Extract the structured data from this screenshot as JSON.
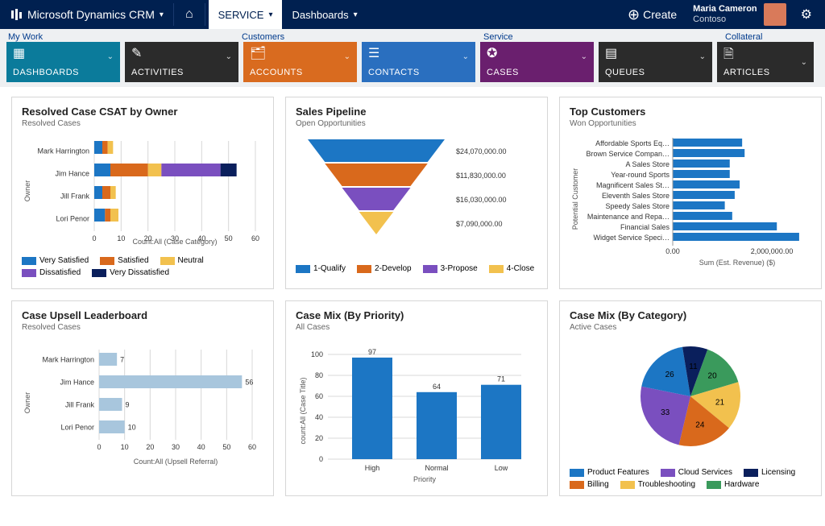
{
  "topbar": {
    "brand": "Microsoft Dynamics CRM",
    "nav": {
      "service": "SERVICE",
      "dashboards": "Dashboards"
    },
    "create": "Create",
    "user": {
      "name": "Maria Cameron",
      "org": "Contoso"
    }
  },
  "sections": {
    "mywork": "My Work",
    "customers": "Customers",
    "service": "Service",
    "collateral": "Collateral"
  },
  "tiles": {
    "dashboards": "DASHBOARDS",
    "activities": "ACTIVITIES",
    "accounts": "ACCOUNTS",
    "contacts": "CONTACTS",
    "cases": "CASES",
    "queues": "QUEUES",
    "articles": "ARTICLES"
  },
  "cards": {
    "csat": {
      "title": "Resolved Case CSAT by Owner",
      "subtitle": "Resolved Cases",
      "ylabel": "Owner",
      "xlabel": "Count:All (Case Category)",
      "xmax": 60,
      "xtick": 10,
      "owners": [
        "Mark Harrington",
        "Jim Hance",
        "Jill Frank",
        "Lori Penor"
      ],
      "series": [
        "Very Satisfied",
        "Satisfied",
        "Neutral",
        "Dissatisfied",
        "Very Dissatisfied"
      ],
      "colors": [
        "#1c76c4",
        "#d9691c",
        "#f2c14e",
        "#7a4fbf",
        "#0a1f5c"
      ],
      "stacks": [
        [
          3,
          2,
          2,
          0,
          0
        ],
        [
          6,
          14,
          5,
          22,
          6
        ],
        [
          3,
          3,
          2,
          0,
          0
        ],
        [
          4,
          2,
          3,
          0,
          0
        ]
      ]
    },
    "pipeline": {
      "title": "Sales Pipeline",
      "subtitle": "Open Opportunities",
      "stages": [
        {
          "label": "1-Qualify",
          "value": "$24,070,000.00",
          "color": "#1c76c4"
        },
        {
          "label": "2-Develop",
          "value": "$11,830,000.00",
          "color": "#d9691c"
        },
        {
          "label": "3-Propose",
          "value": "$16,030,000.00",
          "color": "#7a4fbf"
        },
        {
          "label": "4-Close",
          "value": "$7,090,000.00",
          "color": "#f2c14e"
        }
      ]
    },
    "topcust": {
      "title": "Top Customers",
      "subtitle": "Won Opportunities",
      "ylabel": "Potential Customer",
      "xlabel": "Sum (Est. Revenue) ($)",
      "xticks": [
        "0.00",
        "2,000,000.00"
      ],
      "xmax": 2600000,
      "bar_color": "#1c76c4",
      "rows": [
        {
          "label": "Affordable Sports Eq…",
          "value": 1400000
        },
        {
          "label": "Brown Service Compan…",
          "value": 1450000
        },
        {
          "label": "A Sales Store",
          "value": 1150000
        },
        {
          "label": "Year-round Sports",
          "value": 1150000
        },
        {
          "label": "Magnificent Sales St…",
          "value": 1350000
        },
        {
          "label": "Eleventh Sales Store",
          "value": 1250000
        },
        {
          "label": "Speedy Sales Store",
          "value": 1050000
        },
        {
          "label": "Maintenance and Repa…",
          "value": 1200000
        },
        {
          "label": "Financial Sales",
          "value": 2100000
        },
        {
          "label": "Widget Service Speci…",
          "value": 2550000
        }
      ]
    },
    "upsell": {
      "title": "Case Upsell Leaderboard",
      "subtitle": "Resolved Cases",
      "ylabel": "Owner",
      "xlabel": "Count:All (Upsell Referral)",
      "xmax": 60,
      "xtick": 10,
      "bar_color": "#a8c6dd",
      "rows": [
        {
          "label": "Mark Harrington",
          "value": 7
        },
        {
          "label": "Jim Hance",
          "value": 56
        },
        {
          "label": "Jill Frank",
          "value": 9
        },
        {
          "label": "Lori Penor",
          "value": 10
        }
      ]
    },
    "mixpri": {
      "title": "Case Mix (By Priority)",
      "subtitle": "All Cases",
      "ylabel": "count:All (Case Title)",
      "xlabel": "Priority",
      "ymax": 100,
      "ytick": 20,
      "bar_color": "#1c76c4",
      "rows": [
        {
          "label": "High",
          "value": 97
        },
        {
          "label": "Normal",
          "value": 64
        },
        {
          "label": "Low",
          "value": 71
        }
      ]
    },
    "mixcat": {
      "title": "Case Mix (By Category)",
      "subtitle": "Active Cases",
      "legend": [
        {
          "label": "Product Features",
          "color": "#1c76c4"
        },
        {
          "label": "Cloud Services",
          "color": "#7a4fbf"
        },
        {
          "label": "Licensing",
          "color": "#0a1f5c"
        },
        {
          "label": "Billing",
          "color": "#d9691c"
        },
        {
          "label": "Troubleshooting",
          "color": "#f2c14e"
        },
        {
          "label": "Hardware",
          "color": "#3a9a5c"
        }
      ],
      "slices": [
        {
          "label": "20",
          "value": 20,
          "color": "#3a9a5c"
        },
        {
          "label": "21",
          "value": 21,
          "color": "#f2c14e"
        },
        {
          "label": "24",
          "value": 24,
          "color": "#d9691c"
        },
        {
          "label": "33",
          "value": 33,
          "color": "#7a4fbf"
        },
        {
          "label": "26",
          "value": 26,
          "color": "#1c76c4"
        },
        {
          "label": "11",
          "value": 11,
          "color": "#0a1f5c"
        }
      ]
    }
  }
}
